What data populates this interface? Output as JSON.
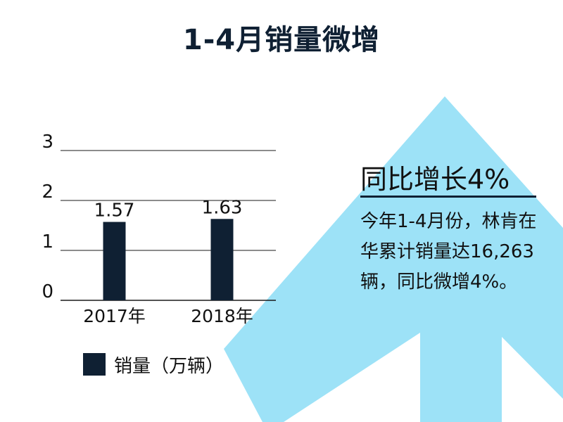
{
  "colors": {
    "bar": "#0f2033",
    "arrow": "#9de2f7",
    "grid": "#1a1a1a",
    "text": "#111111"
  },
  "stat": {
    "heading": "同比增长4%",
    "text": "今年1-4月份，林肯在华累计销量达16,263辆，同比微增4%。"
  },
  "chart_data": {
    "type": "bar",
    "title": "1-4月销量微增",
    "categories": [
      "2017年",
      "2018年"
    ],
    "series": [
      {
        "name": "销量（万辆）",
        "values": [
          1.57,
          1.63
        ],
        "labels": [
          "1.57",
          "1.63"
        ]
      }
    ],
    "yticks": [
      "0",
      "1",
      "2",
      "3"
    ],
    "ylim": [
      0,
      3
    ],
    "grid": true,
    "legend": "bottom"
  }
}
